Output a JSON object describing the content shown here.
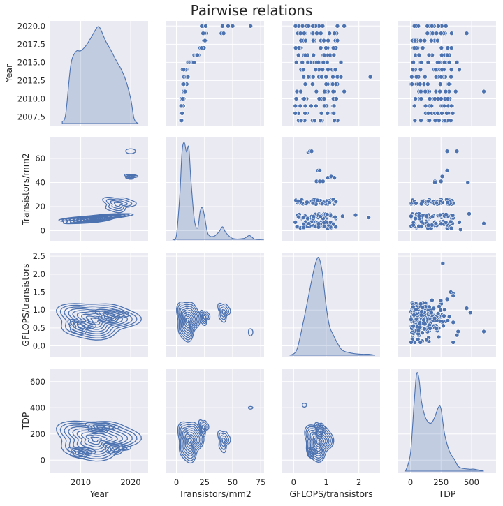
{
  "figure": {
    "title": "Pairwise relations",
    "background": "#ffffff",
    "panel_color": "#eaeaf2",
    "accent_color": "#4c72b0"
  },
  "chart_data": {
    "type": "pairgrid",
    "title": "Pairwise relations",
    "grid": true,
    "variables": [
      {
        "name": "Year",
        "range": [
          2003.9,
          2023.5
        ],
        "ticks": [
          2010,
          2020
        ],
        "tick_labels": [
          "2010",
          "2020"
        ],
        "ytick_values": [
          2007.5,
          2010.0,
          2012.5,
          2015.0,
          2017.5,
          2020.0
        ],
        "ytick_labels": [
          "2007.5",
          "2010.0",
          "2012.5",
          "2015.0",
          "2017.5",
          "2020.0"
        ],
        "yrange": [
          2006.3,
          2020.7
        ]
      },
      {
        "name": "Transistors/mm2",
        "range": [
          -9,
          78
        ],
        "ticks": [
          0,
          25,
          50,
          75
        ],
        "tick_labels": [
          "0",
          "25",
          "50",
          "75"
        ],
        "ytick_values": [
          0,
          20,
          40,
          60
        ],
        "ytick_labels": [
          "0",
          "20",
          "40",
          "60"
        ],
        "yrange": [
          -9,
          78
        ]
      },
      {
        "name": "GFLOPS/transistors",
        "range": [
          -0.35,
          2.65
        ],
        "ticks": [
          0,
          1,
          2
        ],
        "tick_labels": [
          "0",
          "1",
          "2"
        ],
        "ytick_values": [
          0.0,
          0.5,
          1.0,
          1.5,
          2.0,
          2.5
        ],
        "ytick_labels": [
          "0.0",
          "0.5",
          "1.0",
          "1.5",
          "2.0",
          "2.5"
        ],
        "yrange": [
          -0.32,
          2.6
        ]
      },
      {
        "name": "TDP",
        "range": [
          -100,
          700
        ],
        "ticks": [
          0,
          250,
          500
        ],
        "tick_labels": [
          "0",
          "250",
          "500"
        ],
        "ytick_values": [
          0,
          200,
          400,
          600
        ],
        "ytick_labels": [
          "0",
          "200",
          "400",
          "600"
        ],
        "yrange": [
          -100,
          700
        ]
      }
    ],
    "diagonal": {
      "kind": "kde",
      "curves": [
        {
          "variable": "Year",
          "points": [
            [
              2006.3,
              0.02
            ],
            [
              2007,
              0.1
            ],
            [
              2008,
              0.6
            ],
            [
              2009,
              0.74
            ],
            [
              2010,
              0.75
            ],
            [
              2011,
              0.8
            ],
            [
              2012,
              0.88
            ],
            [
              2013,
              0.97
            ],
            [
              2013.5,
              1.0
            ],
            [
              2014,
              0.97
            ],
            [
              2015,
              0.85
            ],
            [
              2016,
              0.76
            ],
            [
              2017,
              0.66
            ],
            [
              2018,
              0.57
            ],
            [
              2019,
              0.45
            ],
            [
              2020,
              0.26
            ],
            [
              2020.7,
              0.05
            ],
            [
              2021.5,
              0.0
            ]
          ]
        },
        {
          "variable": "Transistors/mm2",
          "points": [
            [
              -3,
              0.0
            ],
            [
              0,
              0.04
            ],
            [
              3,
              0.45
            ],
            [
              5,
              0.9
            ],
            [
              7,
              1.0
            ],
            [
              9,
              0.9
            ],
            [
              11,
              0.95
            ],
            [
              13,
              0.6
            ],
            [
              16,
              0.2
            ],
            [
              19,
              0.12
            ],
            [
              21,
              0.28
            ],
            [
              23,
              0.33
            ],
            [
              25,
              0.24
            ],
            [
              28,
              0.06
            ],
            [
              33,
              0.03
            ],
            [
              38,
              0.08
            ],
            [
              41,
              0.13
            ],
            [
              44,
              0.07
            ],
            [
              50,
              0.01
            ],
            [
              60,
              0.01
            ],
            [
              65,
              0.04
            ],
            [
              70,
              0.0
            ],
            [
              78,
              0.0
            ]
          ]
        },
        {
          "variable": "GFLOPS/transistors",
          "points": [
            [
              -0.1,
              0.0
            ],
            [
              0.1,
              0.06
            ],
            [
              0.3,
              0.35
            ],
            [
              0.45,
              0.6
            ],
            [
              0.6,
              0.85
            ],
            [
              0.7,
              0.98
            ],
            [
              0.78,
              1.0
            ],
            [
              0.88,
              0.85
            ],
            [
              1.0,
              0.5
            ],
            [
              1.1,
              0.3
            ],
            [
              1.2,
              0.22
            ],
            [
              1.35,
              0.12
            ],
            [
              1.5,
              0.05
            ],
            [
              1.8,
              0.02
            ],
            [
              2.1,
              0.01
            ],
            [
              2.3,
              0.01
            ],
            [
              2.5,
              0.0
            ]
          ]
        },
        {
          "variable": "TDP",
          "points": [
            [
              -40,
              0.0
            ],
            [
              0,
              0.18
            ],
            [
              30,
              0.7
            ],
            [
              50,
              1.0
            ],
            [
              70,
              0.95
            ],
            [
              90,
              0.72
            ],
            [
              120,
              0.56
            ],
            [
              150,
              0.5
            ],
            [
              175,
              0.5
            ],
            [
              200,
              0.56
            ],
            [
              230,
              0.66
            ],
            [
              250,
              0.64
            ],
            [
              280,
              0.38
            ],
            [
              320,
              0.2
            ],
            [
              360,
              0.12
            ],
            [
              400,
              0.04
            ],
            [
              480,
              0.02
            ],
            [
              520,
              0.02
            ],
            [
              600,
              0.0
            ]
          ]
        }
      ]
    },
    "upper_triangle": {
      "kind": "scatter",
      "panels": [
        {
          "x": "Transistors/mm2",
          "y": "Year",
          "clusters": [
            {
              "y": 2007,
              "x_range": [
                3.5,
                5.5
              ]
            },
            {
              "y": 2008,
              "x_range": [
                3.5,
                6
              ]
            },
            {
              "y": 2009,
              "x_range": [
                4,
                7
              ]
            },
            {
              "y": 2010,
              "x_range": [
                4,
                7
              ]
            },
            {
              "y": 2011,
              "x_range": [
                4,
                8
              ]
            },
            {
              "y": 2012,
              "x_range": [
                5,
                10
              ]
            },
            {
              "y": 2013,
              "x_range": [
                5,
                11
              ]
            },
            {
              "y": 2014,
              "x_range": [
                5,
                13
              ]
            },
            {
              "y": 2015,
              "x_range": [
                10,
                16
              ]
            },
            {
              "y": 2016,
              "x_range": [
                14,
                25
              ]
            },
            {
              "y": 2017,
              "x_range": [
                20,
                25
              ]
            },
            {
              "y": 2018,
              "x_range": [
                22,
                27
              ]
            },
            {
              "y": 2019,
              "x_range": [
                22,
                27
              ]
            },
            {
              "y": 2020,
              "x_range": [
                22,
                27
              ]
            }
          ],
          "extra_points": [
            [
              40,
              2019
            ],
            [
              42,
              2019
            ],
            [
              50,
              2020
            ],
            [
              41,
              2020
            ],
            [
              66,
              2020
            ],
            [
              46,
              2020
            ]
          ]
        },
        {
          "x": "GFLOPS/transistors",
          "y": "Year",
          "year_range": [
            2007,
            2020
          ],
          "x_spread": [
            0.05,
            1.35
          ],
          "extra_points": [
            [
              1.45,
              2013
            ],
            [
              1.55,
              2011
            ],
            [
              1.45,
              2015
            ],
            [
              1.55,
              2020
            ],
            [
              2.35,
              2013
            ]
          ]
        },
        {
          "x": "TDP",
          "y": "Year",
          "year_range": [
            2007,
            2020
          ],
          "x_spread": [
            5,
            350
          ],
          "extra_points": [
            [
              460,
              2019
            ],
            [
              400,
              2014
            ],
            [
              290,
              2020
            ],
            [
              370,
              2011
            ],
            [
              600,
              2011
            ],
            [
              330,
              2007
            ],
            [
              380,
              2015
            ]
          ]
        },
        {
          "x": "GFLOPS/transistors",
          "y": "Transistors/mm2",
          "x_spread": [
            0.05,
            1.3
          ],
          "bands": [
            [
              2,
              8
            ],
            [
              10,
              14
            ],
            [
              22,
              26
            ]
          ],
          "extra_points": [
            [
              0.45,
              65
            ],
            [
              0.5,
              66
            ],
            [
              0.55,
              66
            ],
            [
              0.75,
              50
            ],
            [
              0.8,
              50
            ],
            [
              0.7,
              41
            ],
            [
              0.8,
              41
            ],
            [
              0.9,
              41
            ],
            [
              1.05,
              44
            ],
            [
              1.15,
              45
            ],
            [
              1.25,
              44
            ],
            [
              1.9,
              13
            ],
            [
              2.3,
              11
            ],
            [
              1.5,
              12
            ]
          ]
        },
        {
          "x": "TDP",
          "y": "Transistors/mm2",
          "x_spread": [
            5,
            360
          ],
          "bands": [
            [
              2,
              8
            ],
            [
              10,
              14
            ],
            [
              22,
              26
            ]
          ],
          "extra_points": [
            [
              300,
              66
            ],
            [
              380,
              66
            ],
            [
              300,
              50
            ],
            [
              260,
              45
            ],
            [
              200,
              41
            ],
            [
              250,
              41
            ],
            [
              200,
              40
            ],
            [
              470,
              40
            ],
            [
              480,
              14
            ],
            [
              600,
              6
            ],
            [
              400,
              7
            ],
            [
              410,
              1
            ]
          ]
        },
        {
          "x": "TDP",
          "y": "GFLOPS/transistors",
          "x_spread": [
            5,
            350
          ],
          "y_spread": [
            0.1,
            1.3
          ],
          "extra_points": [
            [
              265,
              2.3
            ],
            [
              330,
              1.5
            ],
            [
              350,
              1.45
            ],
            [
              350,
              1.4
            ],
            [
              300,
              1.3
            ],
            [
              460,
              1.05
            ],
            [
              490,
              0.93
            ],
            [
              600,
              0.4
            ],
            [
              380,
              0.3
            ],
            [
              390,
              0.4
            ]
          ]
        }
      ]
    },
    "lower_triangle": {
      "kind": "kde_contours",
      "panels": [
        {
          "x": "Year",
          "y": "Transistors/mm2",
          "center": [
            2012.5,
            10
          ],
          "axis": [
            [
              7,
              6.5
            ],
            [
              -1.8,
              3.0
            ]
          ],
          "levels": 9,
          "extra_modes": [
            [
              2017.5,
              22,
              3.0,
              6
            ],
            [
              2020,
              45,
              1.2,
              2
            ]
          ],
          "islands": [
            [
              2020,
              66,
              1.0,
              2.0
            ]
          ]
        },
        {
          "x": "Year",
          "y": "GFLOPS/transistors",
          "center": [
            2013,
            0.72
          ],
          "axis": [
            [
              8,
              0
            ],
            [
              0,
              0.5
            ]
          ],
          "levels": 9,
          "extra_modes": [
            [
              2016,
              0.85,
              3.0,
              0.18
            ],
            [
              2010,
              0.55,
              2.5,
              0.2
            ]
          ]
        },
        {
          "x": "Transistors/mm2",
          "y": "GFLOPS/transistors",
          "center": [
            10,
            0.72
          ],
          "axis": [
            [
              10,
              0
            ],
            [
              0,
              0.55
            ]
          ],
          "levels": 9,
          "extra_modes": [
            [
              25,
              0.8,
              4,
              0.2
            ],
            [
              42,
              0.95,
              5,
              0.25
            ]
          ],
          "islands": [
            [
              66,
              0.38,
              2.0,
              0.1
            ]
          ]
        },
        {
          "x": "Year",
          "y": "TDP",
          "center": [
            2013,
            160
          ],
          "axis": [
            [
              8,
              0
            ],
            [
              0,
              150
            ]
          ],
          "levels": 9,
          "extra_modes": [
            [
              2014,
              250,
              3.0,
              40
            ],
            [
              2010,
              60,
              2.5,
              40
            ],
            [
              2017,
              90,
              2.5,
              40
            ]
          ]
        },
        {
          "x": "Transistors/mm2",
          "y": "TDP",
          "center": [
            12,
            150
          ],
          "axis": [
            [
              11,
              0
            ],
            [
              0,
              155
            ]
          ],
          "levels": 9,
          "extra_modes": [
            [
              24,
              250,
              4,
              60
            ],
            [
              42,
              150,
              5,
              80
            ]
          ],
          "islands": [
            [
              66,
              400,
              2.0,
              10
            ]
          ]
        },
        {
          "x": "GFLOPS/transistors",
          "y": "TDP",
          "center": [
            0.75,
            140
          ],
          "axis": [
            [
              0.42,
              0.1
            ],
            [
              0,
              140
            ]
          ],
          "levels": 9,
          "extra_modes": [
            [
              0.8,
              230,
              0.15,
              60
            ],
            [
              0.55,
              60,
              0.15,
              40
            ]
          ],
          "islands": [
            [
              0.33,
              420,
              0.07,
              15
            ]
          ]
        }
      ]
    }
  }
}
